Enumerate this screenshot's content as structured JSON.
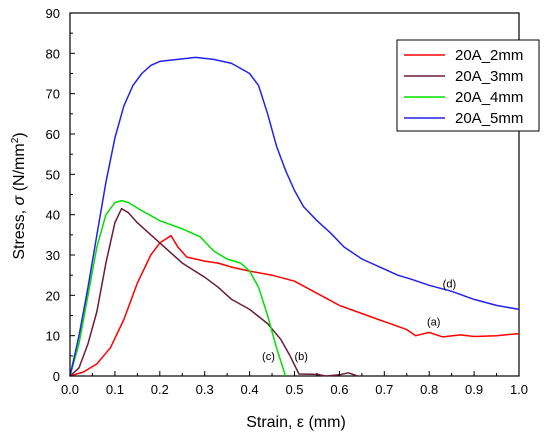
{
  "chart_data": {
    "type": "line",
    "xlabel": "Strain, ε (mm)",
    "ylabel_main": "Stress, ",
    "ylabel_sigma": "σ",
    "ylabel_units": " (N/mm",
    "ylabel_sup": "2",
    "ylabel_close": ")",
    "xlim": [
      0,
      1.0
    ],
    "ylim": [
      0,
      90
    ],
    "xticks": [
      "0.0",
      "0.1",
      "0.2",
      "0.3",
      "0.4",
      "0.5",
      "0.6",
      "0.7",
      "0.8",
      "0.9",
      "1.0"
    ],
    "yticks": [
      "0",
      "10",
      "20",
      "30",
      "40",
      "50",
      "60",
      "70",
      "80",
      "90"
    ],
    "grid": false,
    "legend_position": "top-right",
    "series": [
      {
        "name": "20A_2mm",
        "color": "#ff0000",
        "annotation": "(a)",
        "annotation_at": [
          0.81,
          12.5
        ],
        "points": [
          [
            0,
            0
          ],
          [
            0.03,
            1
          ],
          [
            0.06,
            3
          ],
          [
            0.09,
            7
          ],
          [
            0.12,
            14
          ],
          [
            0.15,
            23
          ],
          [
            0.18,
            30
          ],
          [
            0.2,
            33
          ],
          [
            0.225,
            34.8
          ],
          [
            0.24,
            32
          ],
          [
            0.26,
            29.5
          ],
          [
            0.3,
            28.5
          ],
          [
            0.33,
            28
          ],
          [
            0.36,
            27
          ],
          [
            0.4,
            26
          ],
          [
            0.45,
            25
          ],
          [
            0.5,
            23.5
          ],
          [
            0.55,
            20.5
          ],
          [
            0.6,
            17.5
          ],
          [
            0.65,
            15.5
          ],
          [
            0.7,
            13.5
          ],
          [
            0.75,
            11.5
          ],
          [
            0.77,
            10
          ],
          [
            0.8,
            10.8
          ],
          [
            0.83,
            9.7
          ],
          [
            0.87,
            10.2
          ],
          [
            0.9,
            9.8
          ],
          [
            0.95,
            10
          ],
          [
            1.0,
            10.5
          ]
        ]
      },
      {
        "name": "20A_3mm",
        "color": "#6b1a3a",
        "annotation": "(b)",
        "annotation_at": [
          0.515,
          4
        ],
        "points": [
          [
            0,
            0
          ],
          [
            0.02,
            2
          ],
          [
            0.04,
            8
          ],
          [
            0.06,
            16
          ],
          [
            0.08,
            28
          ],
          [
            0.1,
            38
          ],
          [
            0.115,
            41.5
          ],
          [
            0.13,
            40.5
          ],
          [
            0.15,
            38
          ],
          [
            0.18,
            35
          ],
          [
            0.21,
            32
          ],
          [
            0.25,
            28
          ],
          [
            0.3,
            24.5
          ],
          [
            0.33,
            22
          ],
          [
            0.36,
            19
          ],
          [
            0.4,
            16.5
          ],
          [
            0.44,
            13
          ],
          [
            0.47,
            9
          ],
          [
            0.49,
            5
          ],
          [
            0.51,
            0.5
          ],
          [
            0.55,
            0.4
          ],
          [
            0.57,
            0
          ],
          [
            0.6,
            0.3
          ],
          [
            0.62,
            0.8
          ],
          [
            0.64,
            0
          ]
        ]
      },
      {
        "name": "20A_4mm",
        "color": "#00e000",
        "annotation": "(c)",
        "annotation_at": [
          0.442,
          4
        ],
        "points": [
          [
            0,
            0
          ],
          [
            0.02,
            8
          ],
          [
            0.04,
            20
          ],
          [
            0.06,
            32
          ],
          [
            0.08,
            40
          ],
          [
            0.1,
            43
          ],
          [
            0.115,
            43.5
          ],
          [
            0.13,
            43
          ],
          [
            0.16,
            41
          ],
          [
            0.2,
            38.5
          ],
          [
            0.25,
            36.5
          ],
          [
            0.29,
            34.5
          ],
          [
            0.32,
            31
          ],
          [
            0.35,
            29
          ],
          [
            0.38,
            28
          ],
          [
            0.4,
            26
          ],
          [
            0.42,
            22
          ],
          [
            0.44,
            15
          ],
          [
            0.46,
            7
          ],
          [
            0.48,
            0
          ]
        ]
      },
      {
        "name": "20A_5mm",
        "color": "#2222ee",
        "annotation": "(d)",
        "annotation_at": [
          0.845,
          22
        ],
        "points": [
          [
            0,
            0
          ],
          [
            0.02,
            10
          ],
          [
            0.04,
            22
          ],
          [
            0.06,
            35
          ],
          [
            0.08,
            48
          ],
          [
            0.1,
            59
          ],
          [
            0.12,
            67
          ],
          [
            0.14,
            72
          ],
          [
            0.16,
            75
          ],
          [
            0.18,
            77
          ],
          [
            0.2,
            78
          ],
          [
            0.24,
            78.5
          ],
          [
            0.28,
            79
          ],
          [
            0.32,
            78.5
          ],
          [
            0.36,
            77.5
          ],
          [
            0.4,
            75
          ],
          [
            0.42,
            72
          ],
          [
            0.44,
            65
          ],
          [
            0.46,
            57
          ],
          [
            0.48,
            51
          ],
          [
            0.5,
            46
          ],
          [
            0.52,
            42
          ],
          [
            0.55,
            38.5
          ],
          [
            0.58,
            35.5
          ],
          [
            0.61,
            32
          ],
          [
            0.65,
            29
          ],
          [
            0.7,
            26.5
          ],
          [
            0.73,
            25
          ],
          [
            0.76,
            24
          ],
          [
            0.8,
            22.5
          ],
          [
            0.85,
            21
          ],
          [
            0.9,
            19
          ],
          [
            0.95,
            17.5
          ],
          [
            1.0,
            16.5
          ]
        ]
      }
    ]
  }
}
